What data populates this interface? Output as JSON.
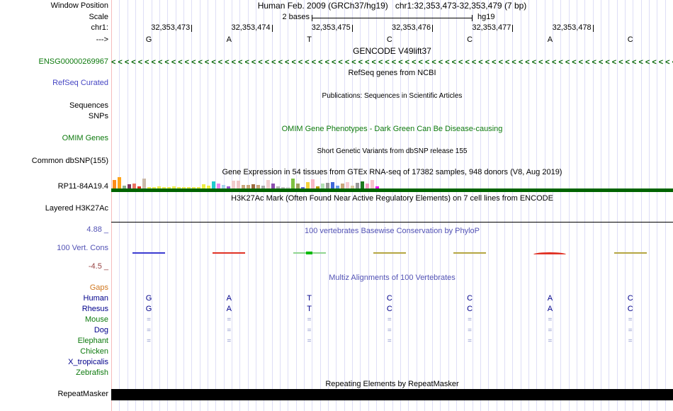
{
  "palette": {
    "grid_line": "#dedef6",
    "left_guide": "#f5bcbc",
    "dark_green": "#006400",
    "green_label": "#0e7a0e",
    "blue_label": "#4747c4",
    "violet_title": "#5353b5",
    "maroon_label": "#994444",
    "orange_label": "#d07820",
    "navy_base": "#00008b",
    "align_equals": "#8892cc"
  },
  "header": {
    "left_label": "Window Position",
    "assembly": "Human Feb. 2009 (GRCh37/hg19)",
    "position": "chr1:32,353,473-32,353,479 (7 bp)"
  },
  "scale": {
    "left_label": "Scale",
    "bar_label": "2 bases",
    "genome": "hg19"
  },
  "ruler": {
    "left_label": "chr1:",
    "coordinates": [
      "32,353,473",
      "32,353,474",
      "32,353,475",
      "32,353,476",
      "32,353,477",
      "32,353,478"
    ]
  },
  "strand": {
    "left_label": "--->",
    "bases": [
      "G",
      "A",
      "T",
      "C",
      "C",
      "A",
      "C"
    ]
  },
  "gencode": {
    "title": "GENCODE V49lift37",
    "gene_label": "ENSG00000269967",
    "arrow_char": "<"
  },
  "refseq": {
    "title": "RefSeq genes from NCBI",
    "label": "RefSeq Curated"
  },
  "publications": {
    "title": "Publications: Sequences in Scientific Articles",
    "labels": [
      "Sequences",
      "SNPs"
    ]
  },
  "omim": {
    "title": "OMIM Gene Phenotypes - Dark Green Can Be Disease-causing",
    "label": "OMIM Genes"
  },
  "dbsnp": {
    "title": "Short Genetic Variants from dbSNP release 155",
    "label": "Common dbSNP(155)"
  },
  "gtex": {
    "title": "Gene Expression in 54 tissues from GTEx RNA-seq of 17382 samples, 948 donors (V8, Aug 2019)",
    "label": "RP11-84A19.4",
    "bars": [
      {
        "color": "#ff8c1a",
        "h": 12
      },
      {
        "color": "#ffa319",
        "h": 16
      },
      {
        "color": "#8fb08f",
        "h": 4
      },
      {
        "color": "#7d3560",
        "h": 6
      },
      {
        "color": "#ea7362",
        "h": 7
      },
      {
        "color": "#e03225",
        "h": 3
      },
      {
        "color": "#cbbaa9",
        "h": 14
      },
      {
        "color": "#eded4e",
        "h": 2
      },
      {
        "color": "#eded4e",
        "h": 2
      },
      {
        "color": "#eded4e",
        "h": 3
      },
      {
        "color": "#eded4e",
        "h": 2
      },
      {
        "color": "#eded4e",
        "h": 2
      },
      {
        "color": "#eded4e",
        "h": 3
      },
      {
        "color": "#eded4e",
        "h": 2
      },
      {
        "color": "#eded4e",
        "h": 2
      },
      {
        "color": "#eded4e",
        "h": 2
      },
      {
        "color": "#eded4e",
        "h": 2
      },
      {
        "color": "#eded4e",
        "h": 2
      },
      {
        "color": "#efef45",
        "h": 6
      },
      {
        "color": "#efef45",
        "h": 4
      },
      {
        "color": "#23cccc",
        "h": 10
      },
      {
        "color": "#ef82ef",
        "h": 7
      },
      {
        "color": "#a8d3ea",
        "h": 5
      },
      {
        "color": "#9955cc",
        "h": 3
      },
      {
        "color": "#f2cccc",
        "h": 11
      },
      {
        "color": "#f0c7c7",
        "h": 11
      },
      {
        "color": "#c9a87c",
        "h": 5
      },
      {
        "color": "#c9a87c",
        "h": 5
      },
      {
        "color": "#9c6d3f",
        "h": 6
      },
      {
        "color": "#c9a87c",
        "h": 5
      },
      {
        "color": "#ababab",
        "h": 4
      },
      {
        "color": "#f2cfcf",
        "h": 12
      },
      {
        "color": "#8a4fae",
        "h": 7
      },
      {
        "color": "#b5b5b5",
        "h": 3
      },
      {
        "color": "#c2c2c2",
        "h": 2
      },
      {
        "color": "#d5d5d5",
        "h": 2
      },
      {
        "color": "#7fc242",
        "h": 14
      },
      {
        "color": "#a0a060",
        "h": 7
      },
      {
        "color": "#6a6ad4",
        "h": 2
      },
      {
        "color": "#f5d33d",
        "h": 9
      },
      {
        "color": "#f8b7c5",
        "h": 13
      },
      {
        "color": "#b29a00",
        "h": 3
      },
      {
        "color": "#b2e0b2",
        "h": 7
      },
      {
        "color": "#9a9a9a",
        "h": 8
      },
      {
        "color": "#4169d8",
        "h": 9
      },
      {
        "color": "#6b9bea",
        "h": 4
      },
      {
        "color": "#c9a87c",
        "h": 7
      },
      {
        "color": "#f6cbd2",
        "h": 9
      },
      {
        "color": "#d8c9a4",
        "h": 4
      },
      {
        "color": "#9a9a9a",
        "h": 8
      },
      {
        "color": "#1f7a1f",
        "h": 10
      },
      {
        "color": "#f59cc0",
        "h": 7
      },
      {
        "color": "#f8c3cb",
        "h": 12
      },
      {
        "color": "#ee00ee",
        "h": 3
      }
    ]
  },
  "h3k27ac": {
    "title": "H3K27Ac Mark (Often Found Near Active Regulatory Elements) on 7 cell lines from ENCODE",
    "label": "Layered H3K27Ac"
  },
  "conservation": {
    "title": "100 vertebrates Basewise Conservation by PhyloP",
    "label": "100 Vert. Cons",
    "y_max": "4.88 _",
    "y_min": "-4.5 _",
    "marks": [
      {
        "color": "#3b3bd1"
      },
      {
        "color": "#e03225"
      },
      {
        "color": "#8fd48f",
        "center": "#00bb00"
      },
      {
        "color": "#b5a642"
      },
      {
        "color": "#b5a642"
      },
      {
        "color": "#e03225",
        "arc": true
      },
      {
        "color": "#b5a642"
      }
    ]
  },
  "multiz": {
    "title": "Multiz Alignments of 100 Vertebrates",
    "rows": [
      {
        "name": "Gaps",
        "color": "orange",
        "cells": []
      },
      {
        "name": "Human",
        "color": "navy",
        "cells": [
          "G",
          "A",
          "T",
          "C",
          "C",
          "A",
          "C"
        ],
        "style": "base"
      },
      {
        "name": "Rhesus",
        "color": "navy",
        "cells": [
          "G",
          "A",
          "T",
          "C",
          "C",
          "A",
          "C"
        ],
        "style": "base"
      },
      {
        "name": "Mouse",
        "color": "green",
        "cells": [
          "=",
          "=",
          "=",
          "=",
          "=",
          "=",
          "="
        ],
        "style": "eq"
      },
      {
        "name": "Dog",
        "color": "navy",
        "cells": [
          "=",
          "=",
          "=",
          "=",
          "=",
          "=",
          "="
        ],
        "style": "eq"
      },
      {
        "name": "Elephant",
        "color": "green",
        "cells": [
          "=",
          "=",
          "=",
          "=",
          "=",
          "=",
          "="
        ],
        "style": "eq"
      },
      {
        "name": "Chicken",
        "color": "green",
        "cells": []
      },
      {
        "name": "X_tropicalis",
        "color": "navy",
        "cells": []
      },
      {
        "name": "Zebrafish",
        "color": "green",
        "cells": []
      }
    ]
  },
  "repeatmasker": {
    "title": "Repeating Elements by RepeatMasker",
    "label": "RepeatMasker"
  }
}
